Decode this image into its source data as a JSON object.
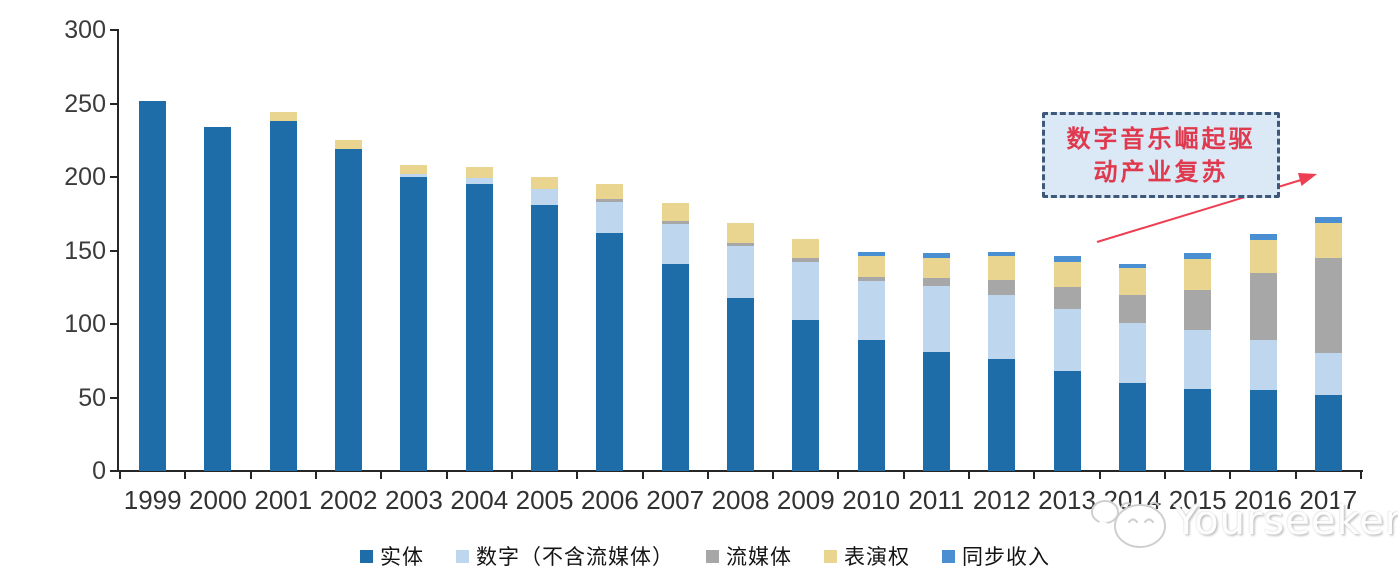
{
  "chart_data": {
    "type": "bar",
    "stacked": true,
    "title": "",
    "xlabel": "",
    "ylabel": "",
    "ylim": [
      0,
      300
    ],
    "yticks": [
      0,
      50,
      100,
      150,
      200,
      250,
      300
    ],
    "grid": false,
    "legend_position": "bottom",
    "categories": [
      "1999",
      "2000",
      "2001",
      "2002",
      "2003",
      "2004",
      "2005",
      "2006",
      "2007",
      "2008",
      "2009",
      "2010",
      "2011",
      "2012",
      "2013",
      "2014",
      "2015",
      "2016",
      "2017"
    ],
    "series": [
      {
        "name": "实体",
        "color": "#1e6ca8",
        "values": [
          252,
          234,
          238,
          219,
          200,
          195,
          181,
          162,
          141,
          118,
          103,
          89,
          81,
          76,
          68,
          60,
          56,
          55,
          52
        ]
      },
      {
        "name": "数字（不含流媒体）",
        "color": "#bed7ee",
        "values": [
          0,
          0,
          0,
          0,
          2,
          4,
          11,
          21,
          27,
          35,
          39,
          40,
          45,
          44,
          42,
          41,
          40,
          34,
          28
        ]
      },
      {
        "name": "流媒体",
        "color": "#a7a7a7",
        "values": [
          0,
          0,
          0,
          0,
          0,
          0,
          0,
          2,
          2,
          2,
          3,
          3,
          5,
          10,
          15,
          19,
          27,
          46,
          65
        ]
      },
      {
        "name": "表演权",
        "color": "#e9d490",
        "values": [
          0,
          0,
          6,
          6,
          6,
          8,
          8,
          10,
          12,
          14,
          13,
          14,
          14,
          16,
          17,
          18,
          21,
          22,
          24
        ]
      },
      {
        "name": "同步收入",
        "color": "#4b8fd3",
        "values": [
          0,
          0,
          0,
          0,
          0,
          0,
          0,
          0,
          0,
          0,
          0,
          3,
          3,
          3,
          4,
          3,
          4,
          4,
          4
        ]
      }
    ]
  },
  "annotation": {
    "lines": [
      "数字音乐崛起驱",
      "动产业复苏"
    ],
    "text_color": "#e0394e",
    "box_fill": "#dbe8f6",
    "box_border": "#3d5878",
    "arrow_color": "#ee3f52"
  },
  "watermark": {
    "text": "Yourseeker",
    "logo": "mascot-face-icon"
  }
}
